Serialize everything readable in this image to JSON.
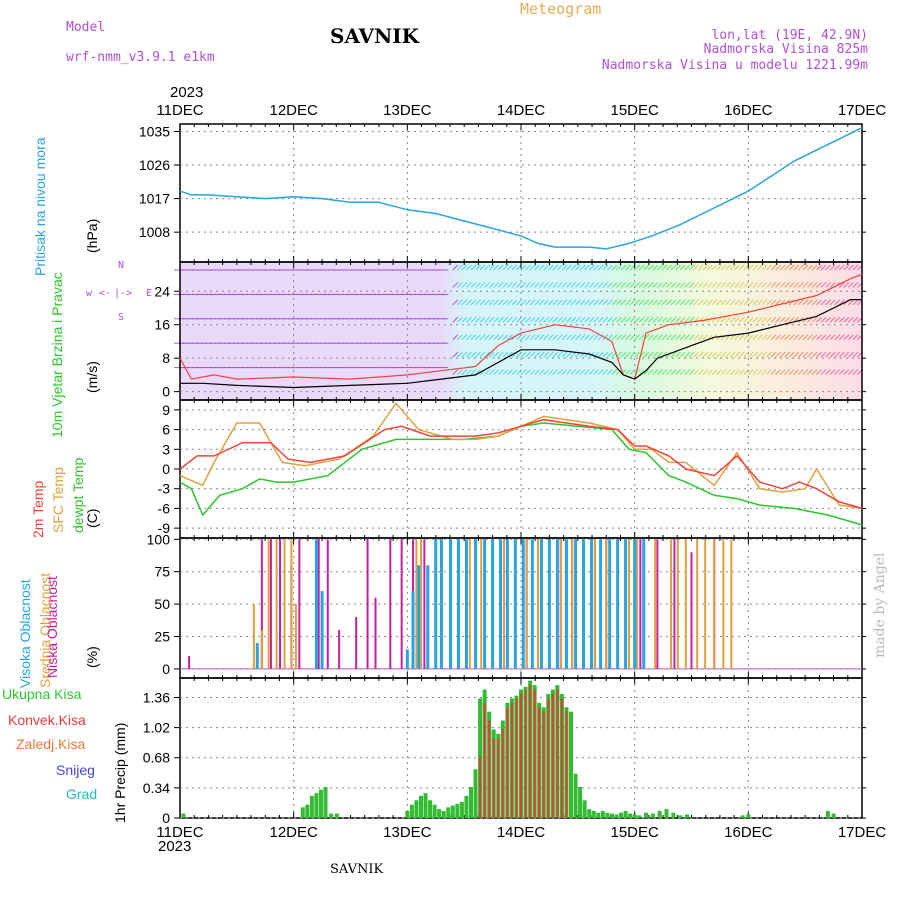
{
  "header": {
    "model_label": "Model",
    "model_name": "wrf-nmm_v3.9.1 e1km",
    "title": "SAVNIK",
    "subtitle": "Meteogram",
    "lonlat": "lon,lat (19E, 42.9N)",
    "elevation": "Nadmorska Visina 825m",
    "model_elevation": "Nadmorska Visina u modelu 1221.99m",
    "year_top": "2023",
    "year_bottom": "2023",
    "footer_station": "SAVNIK",
    "watermark": "made by Angel"
  },
  "colors": {
    "pressure": "#2aa3e0",
    "temp2m": "#f0453a",
    "sfc_temp": "#e0a040",
    "dewpt": "#2ec42e",
    "wind_speed": "#000000",
    "wind_gust": "#f0453a",
    "cloud_high": "#2aa3e0",
    "cloud_mid": "#e0a040",
    "cloud_low": "#c81ea0",
    "precip_total": "#33bb33",
    "precip_conv": "#e83a3a"
  },
  "chart_data": [
    {
      "id": "pressure",
      "type": "line",
      "ylabel": "Pritisak na nivou mora",
      "unit": "(hPa)",
      "x_ticks": [
        "11DEC",
        "12DEC",
        "13DEC",
        "14DEC",
        "15DEC",
        "16DEC",
        "17DEC"
      ],
      "xlim": [
        0,
        6
      ],
      "ylim": [
        1000,
        1037
      ],
      "y_ticks": [
        "1008",
        "1017",
        "1026",
        "1035"
      ],
      "series": [
        {
          "x": [
            0,
            0.1,
            0.25,
            0.5,
            0.75,
            1.0,
            1.25,
            1.5,
            1.75,
            2.0,
            2.25,
            2.5,
            2.75,
            3.0,
            3.15,
            3.3,
            3.45,
            3.6,
            3.75,
            3.95,
            4.15,
            4.4,
            4.6,
            4.8,
            5.0,
            5.2,
            5.4,
            5.6,
            5.8,
            6.0
          ],
          "y": [
            1019,
            1018,
            1018,
            1017.5,
            1017,
            1017.5,
            1017,
            1016,
            1016,
            1014,
            1013,
            1011,
            1009,
            1007,
            1005,
            1004,
            1004,
            1004,
            1003.5,
            1005,
            1007,
            1010,
            1013,
            1016,
            1019,
            1023,
            1027,
            1030,
            1033,
            1036
          ]
        }
      ]
    },
    {
      "id": "wind",
      "type": "line",
      "ylabel": "10m Vjetar Brzina i Pravac",
      "unit": "(m/s)",
      "compass": [
        "w",
        "<-",
        "|",
        "->",
        "N",
        "S",
        "E"
      ],
      "x_ticks": [
        "11DEC",
        "12DEC",
        "13DEC",
        "14DEC",
        "15DEC",
        "16DEC",
        "17DEC"
      ],
      "xlim": [
        0,
        6
      ],
      "ylim": [
        -2,
        31
      ],
      "y_ticks": [
        "0",
        "8",
        "16",
        "24"
      ],
      "series": [
        {
          "name": "speed",
          "x": [
            0,
            0.2,
            0.5,
            1.0,
            1.5,
            2.0,
            2.3,
            2.6,
            2.8,
            3.0,
            3.3,
            3.6,
            3.8,
            3.9,
            4.0,
            4.1,
            4.2,
            4.5,
            4.7,
            5.0,
            5.3,
            5.6,
            5.9,
            6.0
          ],
          "y": [
            2,
            2,
            1.5,
            1,
            1.5,
            2,
            3,
            4,
            7,
            10,
            10,
            9,
            7,
            4,
            3,
            5,
            8,
            11,
            13,
            14,
            16,
            18,
            22,
            22
          ]
        },
        {
          "name": "gust",
          "x": [
            0,
            0.1,
            0.3,
            0.5,
            1.0,
            1.5,
            2.0,
            2.3,
            2.6,
            2.8,
            3.0,
            3.3,
            3.6,
            3.8,
            3.9,
            4.0,
            4.1,
            4.3,
            4.6,
            5.0,
            5.3,
            5.6,
            5.9,
            6.0
          ],
          "y": [
            8,
            3,
            4,
            3,
            3.5,
            3,
            4,
            5,
            6,
            11,
            14,
            16,
            15,
            12,
            4,
            3,
            14,
            16,
            17,
            19,
            21,
            23,
            27,
            28
          ]
        }
      ]
    },
    {
      "id": "temperature",
      "type": "line",
      "ylabels": [
        "2m Temp",
        "SFC Temp",
        "dewpt Temp"
      ],
      "unit": "(C)",
      "x_ticks": [
        "11DEC",
        "12DEC",
        "13DEC",
        "14DEC",
        "15DEC",
        "16DEC",
        "17DEC"
      ],
      "xlim": [
        0,
        6
      ],
      "ylim": [
        -10.5,
        10.5
      ],
      "y_ticks": [
        "-9",
        "-6",
        "-3",
        "0",
        "3",
        "6",
        "9"
      ],
      "series": [
        {
          "name": "2m Temp",
          "x": [
            0,
            0.15,
            0.3,
            0.55,
            0.8,
            0.95,
            1.15,
            1.45,
            1.8,
            1.95,
            2.2,
            2.4,
            2.6,
            2.8,
            3.0,
            3.2,
            3.4,
            3.6,
            3.85,
            4.0,
            4.1,
            4.3,
            4.45,
            4.7,
            4.9,
            5.1,
            5.3,
            5.45,
            5.6,
            5.8,
            6.0
          ],
          "y": [
            0,
            2,
            2,
            4,
            4,
            1.5,
            1,
            2,
            6,
            6.5,
            5,
            5,
            5,
            5.5,
            6.5,
            7.5,
            7,
            6.5,
            6,
            3.5,
            3.5,
            2,
            0,
            -1,
            2,
            -2,
            -3,
            -2,
            -3,
            -5,
            -6
          ]
        },
        {
          "name": "SFC Temp",
          "x": [
            0,
            0.2,
            0.3,
            0.5,
            0.7,
            0.9,
            1.1,
            1.4,
            1.7,
            1.9,
            2.1,
            2.4,
            2.6,
            2.8,
            3.0,
            3.2,
            3.4,
            3.6,
            3.85,
            4.0,
            4.15,
            4.3,
            4.45,
            4.7,
            4.9,
            5.1,
            5.3,
            5.5,
            5.6,
            5.8,
            6.0
          ],
          "y": [
            -1,
            -2.5,
            1,
            7,
            7,
            1,
            0.5,
            1.5,
            5,
            10,
            6,
            4.5,
            4.5,
            5,
            6.5,
            8,
            7.5,
            7,
            6,
            3,
            3,
            1,
            1,
            -2.5,
            2.5,
            -3,
            -3.5,
            -3,
            0,
            -5.5,
            -6
          ]
        },
        {
          "name": "dewpt Temp",
          "x": [
            0,
            0.1,
            0.2,
            0.35,
            0.55,
            0.7,
            0.85,
            1.0,
            1.3,
            1.6,
            1.9,
            2.2,
            2.5,
            2.8,
            3.0,
            3.2,
            3.5,
            3.8,
            3.95,
            4.1,
            4.3,
            4.45,
            4.7,
            4.9,
            5.1,
            5.4,
            5.7,
            6.0
          ],
          "y": [
            -2,
            -3,
            -7,
            -4,
            -3,
            -1.5,
            -2,
            -2,
            -1,
            3,
            4.5,
            4.5,
            4.5,
            5,
            6.5,
            7,
            6.5,
            6,
            3,
            2.5,
            -1,
            -2,
            -4,
            -4.5,
            -5.5,
            -6,
            -7,
            -8.5
          ]
        }
      ]
    },
    {
      "id": "clouds",
      "type": "bar",
      "ylabels": [
        "Visoka Oblacnost",
        "Srednja Oblacnost",
        "Niska Oblacnost"
      ],
      "unit": "(%)",
      "x_ticks": [
        "11DEC",
        "12DEC",
        "13DEC",
        "14DEC",
        "15DEC",
        "16DEC",
        "17DEC"
      ],
      "xlim": [
        0,
        6
      ],
      "ylim": [
        -7,
        101
      ],
      "y_ticks": [
        "0",
        "25",
        "50",
        "75",
        "100"
      ],
      "series": [
        {
          "name": "Niska Oblacnost",
          "x": [
            0.08,
            0.72,
            0.8,
            0.88,
            0.98,
            1.05,
            1.22,
            1.3,
            1.4,
            1.55,
            1.65,
            1.72,
            1.85,
            1.95,
            2.05,
            2.15,
            2.3,
            2.45,
            2.6,
            2.75,
            2.85,
            2.95,
            3.05,
            3.15,
            3.25,
            3.35,
            3.45,
            3.55,
            3.65,
            3.75,
            3.85,
            3.95,
            4.05,
            4.2,
            4.35,
            4.5,
            4.7
          ],
          "y": [
            10,
            100,
            100,
            100,
            80,
            100,
            100,
            100,
            30,
            40,
            100,
            55,
            100,
            100,
            100,
            100,
            100,
            100,
            100,
            100,
            100,
            100,
            100,
            100,
            100,
            100,
            100,
            100,
            100,
            100,
            100,
            100,
            100,
            100,
            100,
            90,
            100
          ]
        },
        {
          "name": "Srednja Oblacnost",
          "x": [
            0.65,
            0.72,
            0.78,
            0.85,
            0.92,
            0.98,
            1.02,
            2.08,
            2.12,
            2.55,
            2.65,
            2.75,
            2.85,
            2.95,
            3.05,
            3.15,
            3.25,
            3.35,
            3.45,
            3.55,
            3.65,
            3.75,
            3.85,
            3.95,
            4.02,
            4.18,
            4.32,
            4.38,
            4.45,
            4.55,
            4.62,
            4.7,
            4.78,
            4.85
          ],
          "y": [
            50,
            30,
            100,
            100,
            100,
            100,
            50,
            100,
            100,
            100,
            100,
            100,
            100,
            100,
            100,
            100,
            80,
            100,
            100,
            100,
            100,
            100,
            100,
            100,
            100,
            100,
            100,
            100,
            100,
            100,
            100,
            100,
            100,
            100
          ]
        },
        {
          "name": "Visoka Oblacnost",
          "x": [
            0.68,
            1.2,
            1.25,
            2.0,
            2.05,
            2.1,
            2.18,
            2.25,
            2.3,
            2.38,
            2.45,
            2.52,
            2.6,
            2.68,
            2.75,
            2.82,
            2.88,
            2.95,
            3.02,
            3.1,
            3.18,
            3.25,
            3.32,
            3.4,
            3.48,
            3.55,
            3.62,
            3.7,
            3.78,
            3.85,
            3.92,
            4.0,
            4.08
          ],
          "y": [
            20,
            100,
            60,
            15,
            60,
            80,
            80,
            100,
            100,
            100,
            100,
            100,
            100,
            100,
            100,
            100,
            100,
            100,
            100,
            100,
            100,
            100,
            100,
            100,
            100,
            100,
            100,
            100,
            100,
            100,
            100,
            100,
            100
          ]
        }
      ]
    },
    {
      "id": "precip",
      "type": "bar",
      "ylabel": "1hr Precip",
      "unit": "(mm)",
      "legend": [
        "Ukupna Kisa",
        "Konvek.Kisa",
        "Zaledj.Kisa",
        "Snijeg",
        "Grad"
      ],
      "x_ticks": [
        "11DEC",
        "12DEC",
        "13DEC",
        "14DEC",
        "15DEC",
        "16DEC",
        "17DEC"
      ],
      "xlim": [
        0,
        6
      ],
      "ylim": [
        0,
        1.58
      ],
      "y_ticks": [
        "0",
        "0.34",
        "0.68",
        "1.02",
        "1.36"
      ],
      "series": [
        {
          "name": "Ukupna Kisa",
          "x": [
            0.03,
            1.08,
            1.12,
            1.16,
            1.2,
            1.24,
            1.28,
            1.33,
            1.38,
            2.0,
            2.04,
            2.08,
            2.12,
            2.16,
            2.2,
            2.24,
            2.28,
            2.32,
            2.36,
            2.4,
            2.44,
            2.48,
            2.52,
            2.56,
            2.6,
            2.64,
            2.68,
            2.72,
            2.76,
            2.8,
            2.84,
            2.88,
            2.92,
            2.96,
            3.0,
            3.04,
            3.08,
            3.12,
            3.16,
            3.2,
            3.24,
            3.28,
            3.32,
            3.36,
            3.4,
            3.44,
            3.48,
            3.52,
            3.56,
            3.6,
            3.64,
            3.68,
            3.72,
            3.76,
            3.8,
            3.84,
            3.88,
            3.92,
            3.96,
            4.0,
            4.04,
            4.1,
            4.16,
            4.22,
            4.28,
            4.34,
            4.4,
            4.46,
            4.95,
            5.0,
            5.7,
            5.75
          ],
          "y": [
            0.05,
            0.12,
            0.15,
            0.25,
            0.28,
            0.32,
            0.35,
            0.05,
            0.05,
            0.08,
            0.15,
            0.2,
            0.25,
            0.28,
            0.2,
            0.15,
            0.1,
            0.08,
            0.12,
            0.14,
            0.16,
            0.18,
            0.25,
            0.35,
            0.55,
            1.35,
            1.45,
            1.2,
            1.0,
            0.95,
            1.1,
            1.3,
            1.35,
            1.38,
            1.45,
            1.48,
            1.55,
            1.5,
            1.3,
            1.25,
            1.4,
            1.45,
            1.5,
            1.4,
            1.25,
            1.2,
            0.5,
            0.35,
            0.2,
            0.1,
            0.08,
            0.06,
            0.08,
            0.06,
            0.05,
            0.04,
            0.06,
            0.08,
            0.05,
            0.04,
            0.03,
            0.06,
            0.05,
            0.08,
            0.1,
            0.06,
            0.03,
            0.04,
            0.03,
            0.04,
            0.08,
            0.05
          ]
        },
        {
          "name": "Konvek.Kisa",
          "x": [
            2.64,
            2.68,
            2.72,
            2.76,
            2.8,
            2.84,
            2.88,
            2.92,
            2.96,
            3.0,
            3.04,
            3.08,
            3.12,
            3.16,
            3.2,
            3.24,
            3.28,
            3.32,
            3.36,
            3.4
          ],
          "y": [
            0.7,
            1.3,
            1.1,
            0.9,
            0.9,
            1.0,
            1.25,
            1.3,
            1.35,
            1.4,
            1.45,
            1.5,
            1.45,
            1.25,
            1.2,
            1.35,
            1.4,
            1.45,
            1.35,
            1.2
          ]
        }
      ]
    }
  ]
}
